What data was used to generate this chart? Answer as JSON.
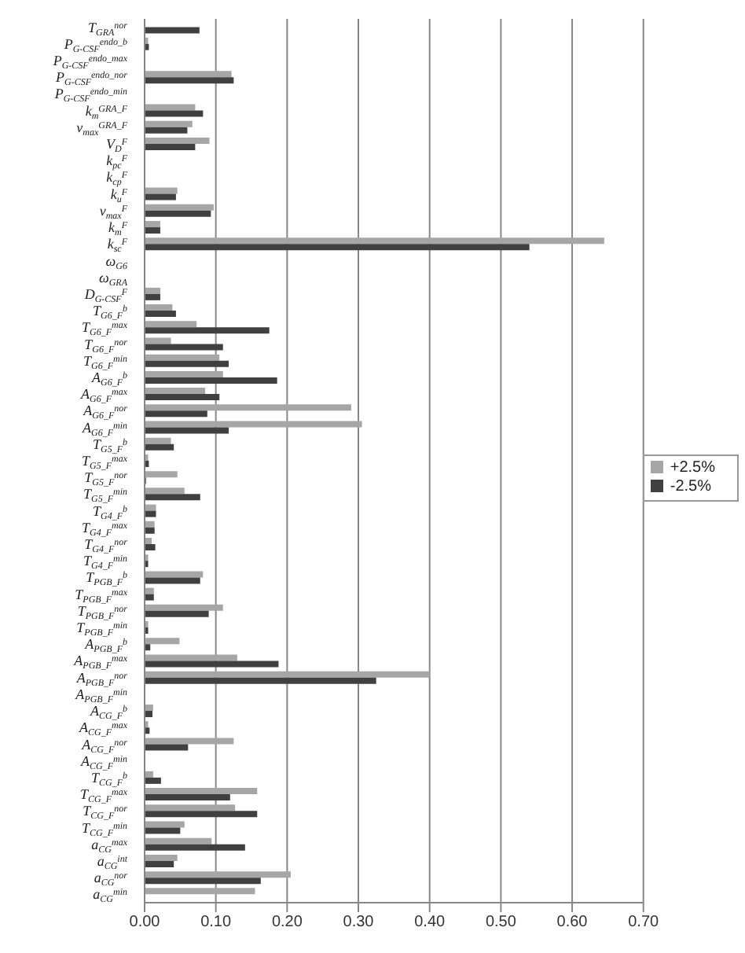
{
  "chart_data": {
    "type": "bar",
    "orientation": "horizontal",
    "categories": [
      "T$_{GRA}$$^{nor}$",
      "P$_{G-CSF}$$^{endo_b}$",
      "P$_{G-CSF}$$^{endo_max}$",
      "P$_{G-CSF}$$^{endo_nor}$",
      "P$_{G-CSF}$$^{endo_min}$",
      "k$_{m}$$^{GRA_F}$",
      "v$_{max}$$^{GRA_F}$",
      "V$_{D}$$^{F}$",
      "k$_{pc}$$^{F}$",
      "k$_{cp}$$^{F}$",
      "k$_{u}$$^{F}$",
      "v$_{max}$$^{F}$",
      "k$_{m}$$^{F}$",
      "k$_{sc}$$^{F}$",
      "ω$_{G6}$",
      "ω$_{GRA}$",
      "D$_{G-CSF}$$^{F}$",
      "T$_{G6_F}$$^{b}$",
      "T$_{G6_F}$$^{max}$",
      "T$_{G6_F}$$^{nor}$",
      "T$_{G6_F}$$^{min}$",
      "A$_{G6_F}$$^{b}$",
      "A$_{G6_F}$$^{max}$",
      "A$_{G6_F}$$^{nor}$",
      "A$_{G6_F}$$^{min}$",
      "T$_{G5_F}$$^{b}$",
      "T$_{G5_F}$$^{max}$",
      "T$_{G5_F}$$^{nor}$",
      "T$_{G5_F}$$^{min}$",
      "T$_{G4_F}$$^{b}$",
      "T$_{G4_F}$$^{max}$",
      "T$_{G4_F}$$^{nor}$",
      "T$_{G4_F}$$^{min}$",
      "T$_{PGB_F}$$^{b}$",
      "T$_{PGB_F}$$^{max}$",
      "T$_{PGB_F}$$^{nor}$",
      "T$_{PGB_F}$$^{min}$",
      "A$_{PGB_F}$$^{b}$",
      "A$_{PGB_F}$$^{max}$",
      "A$_{PGB_F}$$^{nor}$",
      "A$_{PGB_F}$$^{min}$",
      "A$_{CG_F}$$^{b}$",
      "A$_{CG_F}$$^{max}$",
      "A$_{CG_F}$$^{nor}$",
      "A$_{CG_F}$$^{min}$",
      "T$_{CG_F}$$^{b}$",
      "T$_{CG_F}$$^{max}$",
      "T$_{CG_F}$$^{nor}$",
      "T$_{CG_F}$$^{min}$",
      "a$_{CG}$$^{max}$",
      "a$_{CG}$$^{int}$",
      "a$_{CG}$$^{nor}$",
      "a$_{CG}$$^{min}$"
    ],
    "series": [
      {
        "name": "+2.5%",
        "color": "#a6a6a6",
        "values": [
          0,
          0.005,
          0,
          0.122,
          0,
          0.071,
          0.067,
          0.091,
          0,
          0,
          0.046,
          0.097,
          0.022,
          0.645,
          0,
          0,
          0.022,
          0.039,
          0.073,
          0.037,
          0.105,
          0.11,
          0.085,
          0.29,
          0.305,
          0.037,
          0.005,
          0.046,
          0.056,
          0.016,
          0.014,
          0.01,
          0.005,
          0.082,
          0.013,
          0.11,
          0.005,
          0.049,
          0.13,
          0.4,
          0,
          0.012,
          0.005,
          0.125,
          0,
          0.012,
          0.158,
          0.127,
          0.056,
          0.094,
          0.046,
          0.205,
          0.155
        ]
      },
      {
        "name": "-2.5%",
        "color": "#404040",
        "values": [
          0.077,
          0.006,
          0,
          0.125,
          0,
          0.082,
          0.06,
          0.071,
          0,
          0,
          0.044,
          0.093,
          0.022,
          0.54,
          0,
          0,
          0.022,
          0.044,
          0.175,
          0.11,
          0.118,
          0.186,
          0.105,
          0.088,
          0.118,
          0.041,
          0.006,
          0.002,
          0.078,
          0.016,
          0.014,
          0.015,
          0.005,
          0.078,
          0.013,
          0.09,
          0.005,
          0.008,
          0.188,
          0.325,
          0,
          0.011,
          0.007,
          0.061,
          0,
          0.023,
          0.12,
          0.158,
          0.05,
          0.141,
          0.041,
          0.163,
          null
        ]
      }
    ],
    "xlim": [
      0,
      0.7
    ],
    "xticks": [
      {
        "value": 0,
        "label": "0.00"
      },
      {
        "value": 0.1,
        "label": "0.10"
      },
      {
        "value": 0.2,
        "label": "0.20"
      },
      {
        "value": 0.3,
        "label": "0.30"
      },
      {
        "value": 0.4,
        "label": "0.40"
      },
      {
        "value": 0.5,
        "label": "0.50"
      },
      {
        "value": 0.6,
        "label": "0.60"
      },
      {
        "value": 0.7,
        "label": "0.70"
      }
    ],
    "grid": "x",
    "legend": "right"
  }
}
